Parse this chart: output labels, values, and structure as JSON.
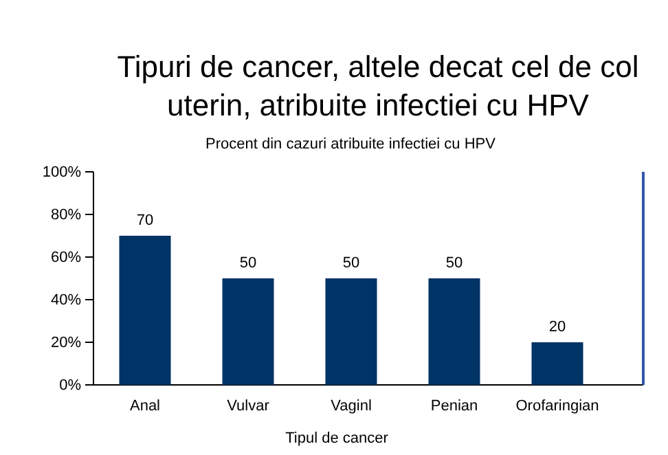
{
  "chart_data": {
    "type": "bar",
    "title": "Tipuri de cancer, altele decat cel de col uterin, atribuite infectiei cu HPV",
    "subtitle": "Procent din cazuri atribuite infectiei cu HPV",
    "xlabel": "Tipul de cancer",
    "categories": [
      "Anal",
      "Vulvar",
      "Vaginl",
      "Penian",
      "Orofaringian"
    ],
    "values": [
      70,
      50,
      50,
      50,
      20
    ],
    "color": "#003366",
    "ylim": [
      0,
      100
    ],
    "yticks": [
      {
        "value": 0,
        "label": "0%"
      },
      {
        "value": 20,
        "label": "20%"
      },
      {
        "value": 40,
        "label": "40%"
      },
      {
        "value": 60,
        "label": "60%"
      },
      {
        "value": 80,
        "label": "80%"
      },
      {
        "value": 100,
        "label": "100%"
      }
    ],
    "data_labels": true
  }
}
